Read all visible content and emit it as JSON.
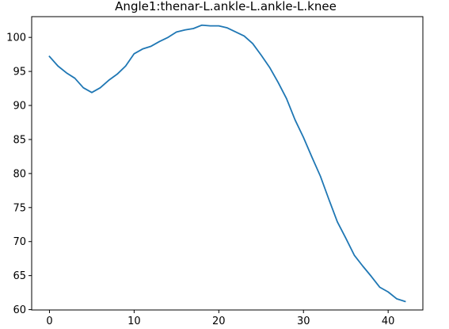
{
  "chart_data": {
    "type": "line",
    "title": "Angle1:thenar-L.ankle-L.ankle-L.knee",
    "xlabel": "",
    "ylabel": "",
    "xlim": [
      -2.1,
      44.1
    ],
    "ylim": [
      59.95,
      103.05
    ],
    "xticks": [
      0,
      10,
      20,
      30,
      40
    ],
    "yticks": [
      60,
      65,
      70,
      75,
      80,
      85,
      90,
      95,
      100
    ],
    "grid": false,
    "series": [
      {
        "name": "",
        "color": "#1f77b4",
        "x": [
          0,
          1,
          2,
          3,
          4,
          5,
          6,
          7,
          8,
          9,
          10,
          11,
          12,
          13,
          14,
          15,
          16,
          17,
          18,
          19,
          20,
          21,
          22,
          23,
          24,
          25,
          26,
          27,
          28,
          29,
          30,
          31,
          32,
          33,
          34,
          35,
          36,
          37,
          38,
          39,
          40,
          41,
          42
        ],
        "y": [
          97.2,
          95.8,
          94.8,
          94.0,
          92.6,
          91.9,
          92.6,
          93.7,
          94.6,
          95.8,
          97.6,
          98.3,
          98.7,
          99.4,
          100.0,
          100.8,
          101.1,
          101.3,
          101.8,
          101.7,
          101.7,
          101.4,
          100.8,
          100.2,
          99.1,
          97.4,
          95.6,
          93.4,
          91.0,
          87.9,
          85.3,
          82.4,
          79.6,
          76.2,
          72.9,
          70.5,
          68.0,
          66.4,
          64.9,
          63.3,
          62.6,
          61.6,
          61.2
        ]
      }
    ]
  }
}
